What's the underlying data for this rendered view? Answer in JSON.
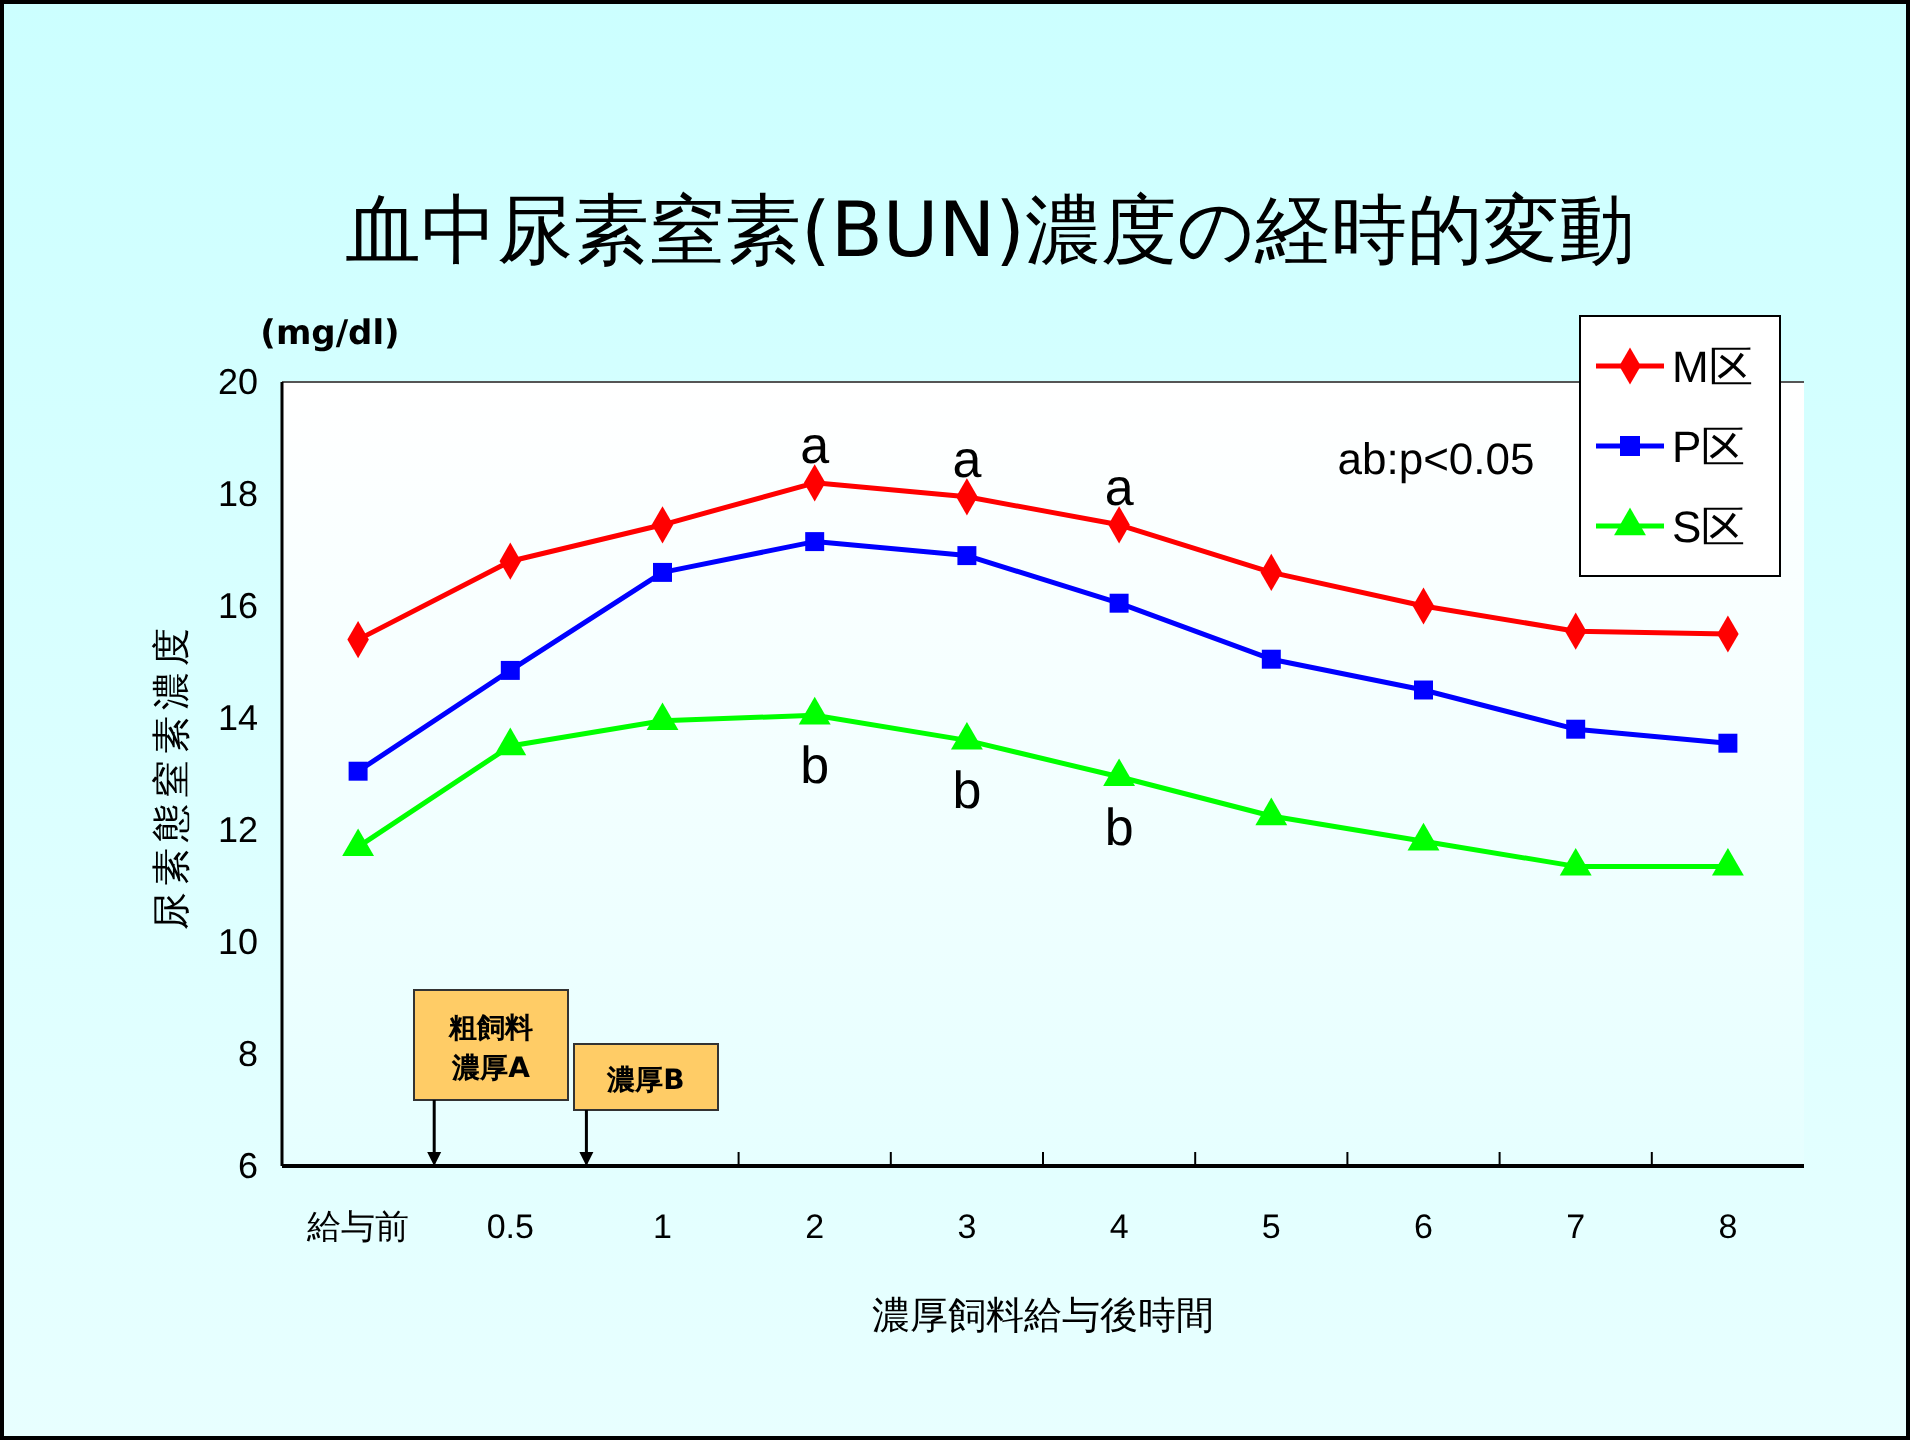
{
  "chart_data": {
    "type": "line",
    "title": "血中尿素窒素(BUN)濃度の経時的変動",
    "xlabel": "濃厚飼料給与後時間",
    "ylabel": "尿素態窒素濃度",
    "y2label": "(mg/dl)",
    "categories": [
      "給与前",
      "0.5",
      "1",
      "2",
      "3",
      "4",
      "5",
      "6",
      "7",
      "8"
    ],
    "ylim": [
      6,
      20
    ],
    "yticks": [
      6,
      8,
      10,
      12,
      14,
      16,
      18,
      20
    ],
    "grid": false,
    "legend": "top right",
    "line_style": "solid",
    "series": [
      {
        "name": "M区",
        "color": "#ff0000",
        "marker": "diamond",
        "values": [
          15.4,
          16.8,
          17.45,
          18.2,
          17.95,
          17.45,
          16.6,
          16.0,
          15.55,
          15.5
        ]
      },
      {
        "name": "P区",
        "color": "#0000ff",
        "marker": "square",
        "values": [
          13.05,
          14.85,
          16.6,
          17.15,
          16.9,
          16.05,
          15.05,
          14.5,
          13.8,
          13.55
        ]
      },
      {
        "name": "S区",
        "color": "#00ff00",
        "marker": "triangle",
        "values": [
          11.7,
          13.5,
          13.95,
          14.05,
          13.6,
          12.95,
          12.25,
          11.8,
          11.35,
          11.35
        ]
      }
    ],
    "annotations": [
      {
        "text": "a",
        "x": "2",
        "y": 18.2
      },
      {
        "text": "a",
        "x": "3",
        "y": 17.95
      },
      {
        "text": "a",
        "x": "4",
        "y": 17.45
      },
      {
        "text": "b",
        "x": "2",
        "y": 14.05
      },
      {
        "text": "b",
        "x": "3",
        "y": 13.6
      },
      {
        "text": "b",
        "x": "4",
        "y": 12.95
      },
      "ab:p<0.05",
      "粗飼料",
      "濃厚A",
      "濃厚B"
    ]
  }
}
